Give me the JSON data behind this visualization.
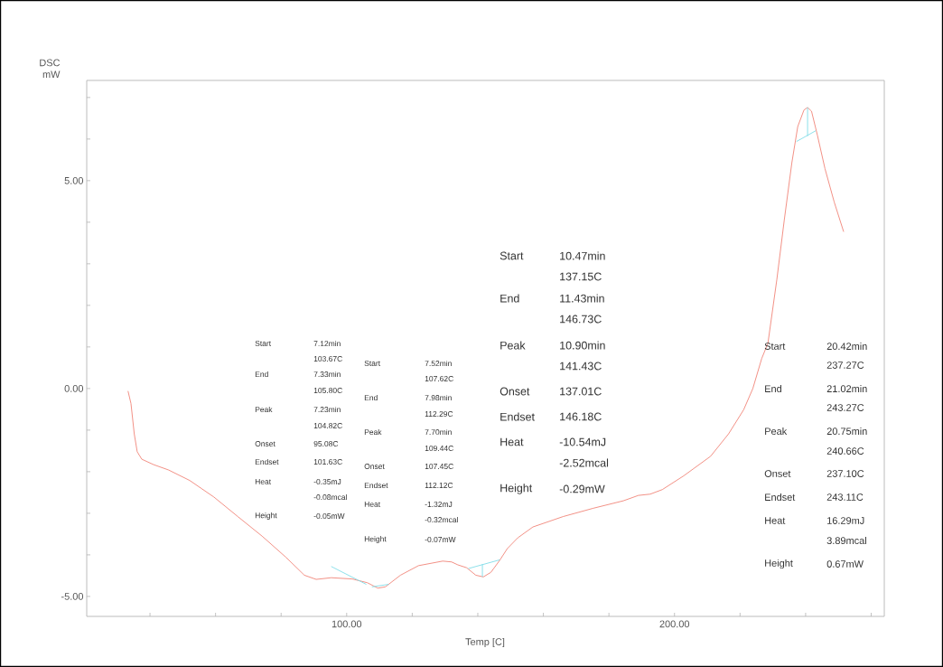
{
  "chart_data": {
    "type": "line",
    "xlabel": "Temp [C]",
    "ylabel": "DSC mW",
    "xlim": [
      20.7,
      264
    ],
    "ylim": [
      -5.48,
      7.41
    ],
    "xticks": [
      {
        "value": 40,
        "label": null
      },
      {
        "value": 60,
        "label": null
      },
      {
        "value": 80,
        "label": null
      },
      {
        "value": 100,
        "label": "100.00"
      },
      {
        "value": 120,
        "label": null
      },
      {
        "value": 140,
        "label": null
      },
      {
        "value": 160,
        "label": null
      },
      {
        "value": 180,
        "label": null
      },
      {
        "value": 200,
        "label": "200.00"
      },
      {
        "value": 220,
        "label": null
      },
      {
        "value": 240,
        "label": null
      },
      {
        "value": 260,
        "label": null
      }
    ],
    "yticks": [
      {
        "value": -5,
        "label": "-5.00"
      },
      {
        "value": -4,
        "label": null
      },
      {
        "value": -3,
        "label": null
      },
      {
        "value": -2,
        "label": null
      },
      {
        "value": -1,
        "label": null
      },
      {
        "value": 0,
        "label": "0.00"
      },
      {
        "value": 1,
        "label": null
      },
      {
        "value": 2,
        "label": null
      },
      {
        "value": 3,
        "label": null
      },
      {
        "value": 4,
        "label": null
      },
      {
        "value": 5,
        "label": "5.00"
      },
      {
        "value": 6,
        "label": null
      },
      {
        "value": 7,
        "label": null
      }
    ],
    "series": [
      {
        "color": "#f08478",
        "x": [
          33.3,
          34.2,
          35.2,
          36.1,
          37.5,
          41.1,
          45.7,
          52.1,
          59.5,
          66.8,
          74.2,
          81.5,
          87.1,
          90.7,
          95.3,
          101.7,
          106.3,
          109.5,
          111.8,
          116.4,
          121.9,
          129.3,
          132.0,
          133.9,
          136.6,
          139.4,
          141.7,
          144.0,
          146.7,
          149.0,
          152.2,
          156.8,
          166.0,
          175.2,
          184.4,
          189.0,
          192.6,
          196.3,
          202.8,
          211.0,
          216.5,
          221.1,
          223.9,
          226.6,
          228.5,
          231.2,
          233.5,
          235.8,
          237.6,
          239.5,
          240.6,
          241.8,
          243.6,
          245.9,
          248.7,
          251.6
        ],
        "values": [
          -0.06,
          -0.36,
          -1.09,
          -1.52,
          -1.7,
          -1.83,
          -1.96,
          -2.21,
          -2.61,
          -3.08,
          -3.55,
          -4.06,
          -4.49,
          -4.59,
          -4.55,
          -4.58,
          -4.67,
          -4.8,
          -4.77,
          -4.49,
          -4.26,
          -4.15,
          -4.17,
          -4.24,
          -4.31,
          -4.49,
          -4.53,
          -4.42,
          -4.13,
          -3.85,
          -3.59,
          -3.33,
          -3.08,
          -2.88,
          -2.7,
          -2.57,
          -2.54,
          -2.43,
          -2.1,
          -1.63,
          -1.09,
          -0.51,
          0.0,
          0.72,
          1.09,
          2.61,
          4.06,
          5.43,
          6.3,
          6.7,
          6.76,
          6.67,
          6.09,
          5.29,
          4.49,
          3.77
        ]
      },
      {
        "color": "#80dce8",
        "x": [
          95.3,
          106.0
        ],
        "values": [
          -4.28,
          -4.71
        ]
      },
      {
        "color": "#80dce8",
        "x": [
          107.7,
          112.8
        ],
        "values": [
          -4.77,
          -4.71
        ]
      },
      {
        "color": "#80dce8",
        "x": [
          137.1,
          146.7
        ],
        "values": [
          -4.33,
          -4.12
        ]
      },
      {
        "color": "#80dce8",
        "x": [
          141.4,
          141.4
        ],
        "values": [
          -4.53,
          -4.22
        ]
      },
      {
        "color": "#80dce8",
        "x": [
          237.2,
          243.1
        ],
        "values": [
          5.94,
          6.2
        ]
      },
      {
        "color": "#80dce8",
        "x": [
          240.6,
          240.6
        ],
        "values": [
          6.76,
          6.07
        ]
      }
    ],
    "annotations": [
      "Start",
      "7.12min",
      "103.67C",
      "End",
      "7.33min",
      "105.80C",
      "Peak",
      "7.23min",
      "104.82C",
      "Onset",
      "95.08C",
      "Endset",
      "101.63C",
      "Heat",
      "-0.35mJ",
      "-0.08mcal",
      "Height",
      "-0.05mW",
      "Start",
      "7.52min",
      "107.62C",
      "End",
      "7.98min",
      "112.29C",
      "Peak",
      "7.70min",
      "109.44C",
      "Onset",
      "107.45C",
      "Endset",
      "112.12C",
      "Heat",
      "-1.32mJ",
      "-0.32mcal",
      "Height",
      "-0.07mW",
      "Start",
      "10.47min",
      "137.15C",
      "End",
      "11.43min",
      "146.73C",
      "Peak",
      "10.90min",
      "141.43C",
      "Onset",
      "137.01C",
      "Endset",
      "146.18C",
      "Heat",
      "-10.54mJ",
      "-2.52mcal",
      "Height",
      "-0.29mW",
      "Start",
      "20.42min",
      "237.27C",
      "End",
      "21.02min",
      "243.27C",
      "Peak",
      "20.75min",
      "240.66C",
      "Onset",
      "237.10C",
      "Endset",
      "243.11C",
      "Heat",
      "16.29mJ",
      "3.89mcal",
      "Height",
      "0.67mW"
    ]
  }
}
